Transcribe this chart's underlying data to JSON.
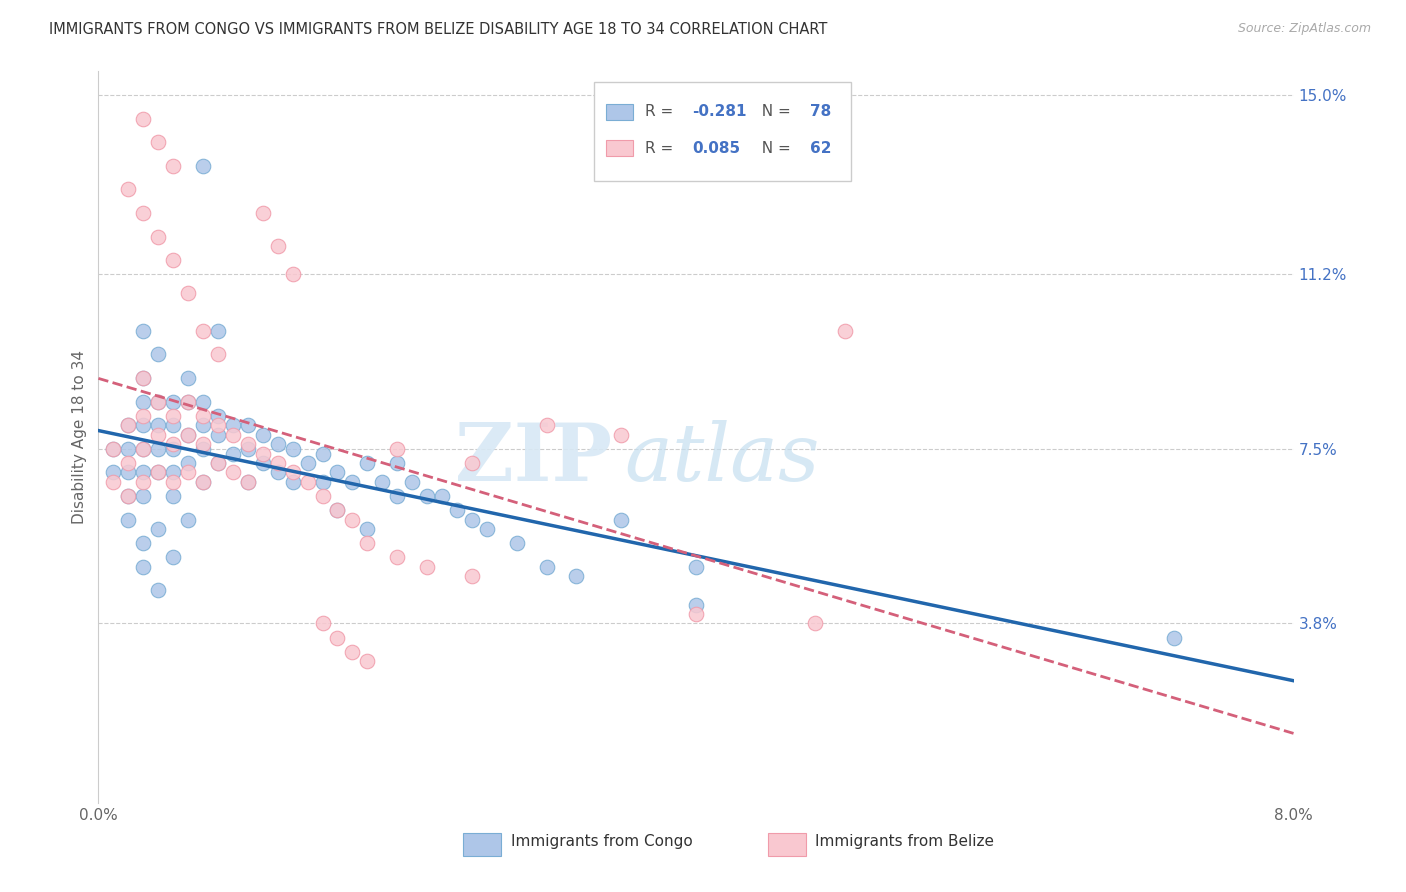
{
  "title": "IMMIGRANTS FROM CONGO VS IMMIGRANTS FROM BELIZE DISABILITY AGE 18 TO 34 CORRELATION CHART",
  "source": "Source: ZipAtlas.com",
  "ylabel": "Disability Age 18 to 34",
  "x_min": 0.0,
  "x_max": 0.08,
  "y_min": 0.0,
  "y_max": 0.155,
  "y_tick_labels_right": [
    "3.8%",
    "7.5%",
    "11.2%",
    "15.0%"
  ],
  "y_tick_values_right": [
    0.038,
    0.075,
    0.112,
    0.15
  ],
  "legend_R_congo": "-0.281",
  "legend_N_congo": "78",
  "legend_R_belize": "0.085",
  "legend_N_belize": "62",
  "color_congo_fill": "#aec6e8",
  "color_congo_edge": "#7aadd4",
  "color_belize_fill": "#f9c8d0",
  "color_belize_edge": "#f09baa",
  "color_congo_line": "#2166ac",
  "color_belize_line": "#d4607a",
  "watermark_zip": "ZIP",
  "watermark_atlas": "atlas",
  "legend_text_color": "#333333",
  "legend_R_color": "#333333",
  "legend_N_color": "#4472c4",
  "congo_x": [
    0.001,
    0.001,
    0.002,
    0.002,
    0.002,
    0.002,
    0.003,
    0.003,
    0.003,
    0.003,
    0.003,
    0.003,
    0.003,
    0.004,
    0.004,
    0.004,
    0.004,
    0.004,
    0.005,
    0.005,
    0.005,
    0.005,
    0.005,
    0.006,
    0.006,
    0.006,
    0.006,
    0.007,
    0.007,
    0.007,
    0.007,
    0.008,
    0.008,
    0.008,
    0.009,
    0.009,
    0.01,
    0.01,
    0.01,
    0.011,
    0.011,
    0.012,
    0.012,
    0.013,
    0.013,
    0.014,
    0.015,
    0.015,
    0.016,
    0.017,
    0.018,
    0.019,
    0.02,
    0.02,
    0.021,
    0.022,
    0.023,
    0.024,
    0.025,
    0.026,
    0.028,
    0.03,
    0.032,
    0.003,
    0.004,
    0.005,
    0.006,
    0.002,
    0.003,
    0.004,
    0.04,
    0.04,
    0.035,
    0.016,
    0.018,
    0.072,
    0.007,
    0.008
  ],
  "congo_y": [
    0.075,
    0.07,
    0.08,
    0.075,
    0.07,
    0.065,
    0.1,
    0.09,
    0.085,
    0.08,
    0.075,
    0.07,
    0.065,
    0.095,
    0.085,
    0.08,
    0.075,
    0.07,
    0.085,
    0.08,
    0.075,
    0.07,
    0.065,
    0.09,
    0.085,
    0.078,
    0.072,
    0.085,
    0.08,
    0.075,
    0.068,
    0.082,
    0.078,
    0.072,
    0.08,
    0.074,
    0.08,
    0.075,
    0.068,
    0.078,
    0.072,
    0.076,
    0.07,
    0.075,
    0.068,
    0.072,
    0.074,
    0.068,
    0.07,
    0.068,
    0.072,
    0.068,
    0.072,
    0.065,
    0.068,
    0.065,
    0.065,
    0.062,
    0.06,
    0.058,
    0.055,
    0.05,
    0.048,
    0.055,
    0.058,
    0.052,
    0.06,
    0.06,
    0.05,
    0.045,
    0.042,
    0.05,
    0.06,
    0.062,
    0.058,
    0.035,
    0.135,
    0.1
  ],
  "belize_x": [
    0.001,
    0.001,
    0.002,
    0.002,
    0.002,
    0.003,
    0.003,
    0.003,
    0.003,
    0.004,
    0.004,
    0.004,
    0.005,
    0.005,
    0.005,
    0.006,
    0.006,
    0.006,
    0.007,
    0.007,
    0.007,
    0.008,
    0.008,
    0.009,
    0.009,
    0.01,
    0.01,
    0.011,
    0.012,
    0.013,
    0.014,
    0.015,
    0.016,
    0.017,
    0.018,
    0.02,
    0.022,
    0.025,
    0.003,
    0.004,
    0.005,
    0.002,
    0.003,
    0.004,
    0.005,
    0.006,
    0.007,
    0.008,
    0.02,
    0.025,
    0.015,
    0.016,
    0.017,
    0.018,
    0.03,
    0.035,
    0.05,
    0.048,
    0.04,
    0.013,
    0.012,
    0.011
  ],
  "belize_y": [
    0.075,
    0.068,
    0.08,
    0.072,
    0.065,
    0.09,
    0.082,
    0.075,
    0.068,
    0.085,
    0.078,
    0.07,
    0.082,
    0.076,
    0.068,
    0.085,
    0.078,
    0.07,
    0.082,
    0.076,
    0.068,
    0.08,
    0.072,
    0.078,
    0.07,
    0.076,
    0.068,
    0.074,
    0.072,
    0.07,
    0.068,
    0.065,
    0.062,
    0.06,
    0.055,
    0.052,
    0.05,
    0.048,
    0.145,
    0.14,
    0.135,
    0.13,
    0.125,
    0.12,
    0.115,
    0.108,
    0.1,
    0.095,
    0.075,
    0.072,
    0.038,
    0.035,
    0.032,
    0.03,
    0.08,
    0.078,
    0.1,
    0.038,
    0.04,
    0.112,
    0.118,
    0.125
  ]
}
